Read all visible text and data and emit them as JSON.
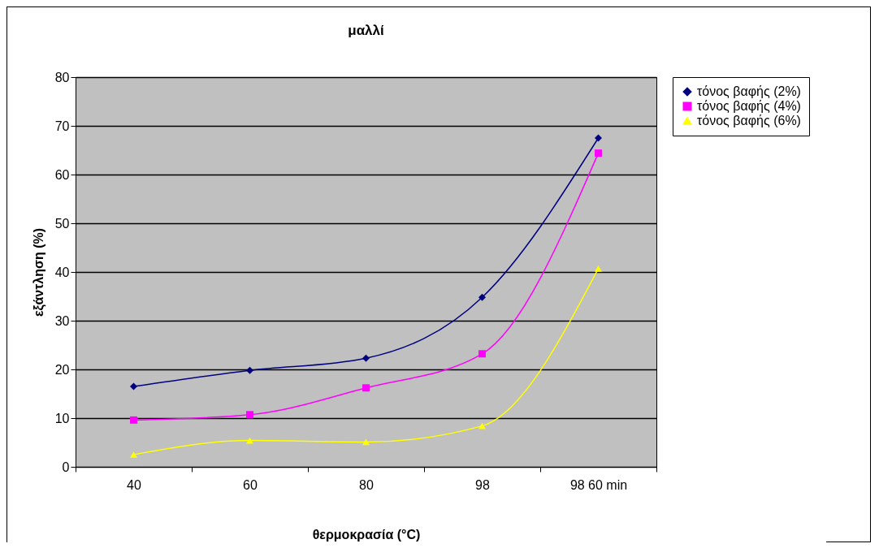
{
  "chart_data": {
    "type": "line",
    "title": "μαλλί",
    "xlabel": "θερμοκρασία (°C)",
    "ylabel": "εξάντληση  (%)",
    "categories": [
      "40",
      "60",
      "80",
      "98",
      "98 60 min"
    ],
    "series": [
      {
        "name": "τόνος βαφής (2%)",
        "color": "#000080",
        "marker": "diamond",
        "values": [
          16.5,
          19.8,
          22.3,
          34.8,
          67.5
        ]
      },
      {
        "name": "τόνος βαφής (4%)",
        "color": "#ff00ff",
        "marker": "square",
        "values": [
          9.6,
          10.7,
          16.2,
          23.2,
          64.4
        ]
      },
      {
        "name": "τόνος βαφής (6%)",
        "color": "#ffff00",
        "marker": "triangle",
        "values": [
          2.5,
          5.4,
          5.1,
          8.4,
          40.7
        ]
      }
    ],
    "ylim": [
      0,
      80
    ],
    "yticks": [
      0,
      10,
      20,
      30,
      40,
      50,
      60,
      70,
      80
    ],
    "grid": "y",
    "legend": "right"
  }
}
